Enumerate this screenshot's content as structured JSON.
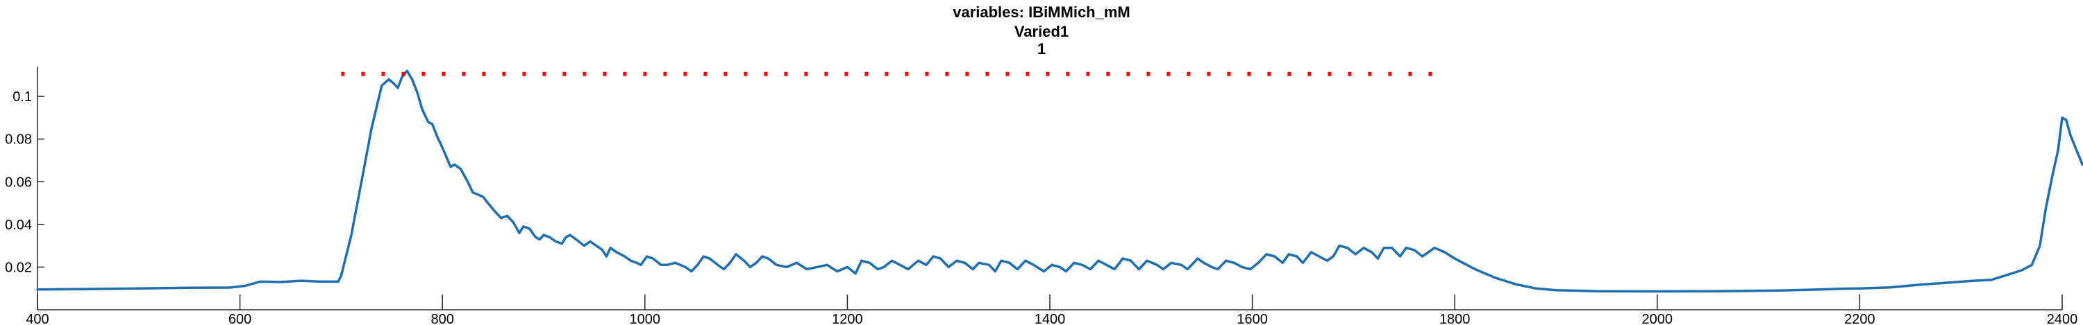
{
  "chart_data": {
    "type": "line",
    "title": "variables: IBiMMich_mM",
    "subtitle_lines": [
      "Varied1",
      "1"
    ],
    "xlabel": "",
    "ylabel": "",
    "xlim": [
      400,
      2400
    ],
    "ylim": [
      0,
      0.114
    ],
    "x_ticks": [
      400,
      600,
      800,
      1000,
      1200,
      1400,
      1600,
      1800,
      2000,
      2200,
      2400
    ],
    "x_tick_labels": [
      "400",
      "600",
      "800",
      "1000",
      "1200",
      "1400",
      "1600",
      "1800",
      "2000",
      "2200",
      "2400"
    ],
    "y_ticks": [
      0.02,
      0.04,
      0.06,
      0.08,
      0.1
    ],
    "y_tick_labels": [
      "0.02",
      "0.04",
      "0.06",
      "0.08",
      "0.1"
    ],
    "grid": false,
    "legend": "none",
    "series": [
      {
        "color": "#1f6fb0",
        "style": "solid",
        "points": [
          [
            400,
            0.0095
          ],
          [
            450,
            0.0097
          ],
          [
            500,
            0.01
          ],
          [
            550,
            0.0103
          ],
          [
            590,
            0.0104
          ],
          [
            605,
            0.0112
          ],
          [
            620,
            0.0132
          ],
          [
            640,
            0.013
          ],
          [
            660,
            0.0136
          ],
          [
            680,
            0.0132
          ],
          [
            697,
            0.0132
          ],
          [
            700,
            0.016
          ],
          [
            710,
            0.035
          ],
          [
            720,
            0.06
          ],
          [
            730,
            0.085
          ],
          [
            740,
            0.105
          ],
          [
            747,
            0.108
          ],
          [
            752,
            0.106
          ],
          [
            756,
            0.104
          ],
          [
            760,
            0.109
          ],
          [
            765,
            0.112
          ],
          [
            770,
            0.108
          ],
          [
            775,
            0.102
          ],
          [
            780,
            0.094
          ],
          [
            786,
            0.088
          ],
          [
            790,
            0.087
          ],
          [
            795,
            0.081
          ],
          [
            800,
            0.076
          ],
          [
            808,
            0.067
          ],
          [
            812,
            0.068
          ],
          [
            818,
            0.066
          ],
          [
            825,
            0.06
          ],
          [
            830,
            0.055
          ],
          [
            835,
            0.054
          ],
          [
            840,
            0.053
          ],
          [
            845,
            0.05
          ],
          [
            852,
            0.046
          ],
          [
            858,
            0.043
          ],
          [
            864,
            0.044
          ],
          [
            870,
            0.041
          ],
          [
            876,
            0.036
          ],
          [
            880,
            0.039
          ],
          [
            886,
            0.038
          ],
          [
            892,
            0.034
          ],
          [
            896,
            0.033
          ],
          [
            900,
            0.035
          ],
          [
            906,
            0.034
          ],
          [
            912,
            0.032
          ],
          [
            918,
            0.031
          ],
          [
            922,
            0.034
          ],
          [
            926,
            0.035
          ],
          [
            932,
            0.033
          ],
          [
            940,
            0.03
          ],
          [
            946,
            0.032
          ],
          [
            952,
            0.03
          ],
          [
            958,
            0.028
          ],
          [
            962,
            0.025
          ],
          [
            966,
            0.029
          ],
          [
            972,
            0.027
          ],
          [
            980,
            0.025
          ],
          [
            986,
            0.023
          ],
          [
            992,
            0.022
          ],
          [
            996,
            0.021
          ],
          [
            1002,
            0.025
          ],
          [
            1008,
            0.024
          ],
          [
            1016,
            0.021
          ],
          [
            1022,
            0.021
          ],
          [
            1030,
            0.022
          ],
          [
            1040,
            0.02
          ],
          [
            1046,
            0.018
          ],
          [
            1052,
            0.021
          ],
          [
            1058,
            0.025
          ],
          [
            1064,
            0.024
          ],
          [
            1072,
            0.021
          ],
          [
            1078,
            0.019
          ],
          [
            1084,
            0.022
          ],
          [
            1090,
            0.026
          ],
          [
            1098,
            0.023
          ],
          [
            1104,
            0.02
          ],
          [
            1110,
            0.022
          ],
          [
            1116,
            0.025
          ],
          [
            1122,
            0.024
          ],
          [
            1130,
            0.021
          ],
          [
            1140,
            0.02
          ],
          [
            1150,
            0.022
          ],
          [
            1160,
            0.019
          ],
          [
            1170,
            0.02
          ],
          [
            1180,
            0.021
          ],
          [
            1190,
            0.018
          ],
          [
            1200,
            0.02
          ],
          [
            1208,
            0.017
          ],
          [
            1214,
            0.023
          ],
          [
            1222,
            0.022
          ],
          [
            1230,
            0.019
          ],
          [
            1236,
            0.02
          ],
          [
            1244,
            0.023
          ],
          [
            1252,
            0.021
          ],
          [
            1260,
            0.019
          ],
          [
            1270,
            0.023
          ],
          [
            1278,
            0.021
          ],
          [
            1285,
            0.025
          ],
          [
            1292,
            0.024
          ],
          [
            1300,
            0.02
          ],
          [
            1308,
            0.023
          ],
          [
            1316,
            0.022
          ],
          [
            1324,
            0.019
          ],
          [
            1330,
            0.022
          ],
          [
            1340,
            0.021
          ],
          [
            1346,
            0.018
          ],
          [
            1352,
            0.023
          ],
          [
            1360,
            0.022
          ],
          [
            1368,
            0.019
          ],
          [
            1376,
            0.023
          ],
          [
            1384,
            0.021
          ],
          [
            1394,
            0.018
          ],
          [
            1402,
            0.021
          ],
          [
            1410,
            0.02
          ],
          [
            1416,
            0.018
          ],
          [
            1424,
            0.022
          ],
          [
            1432,
            0.021
          ],
          [
            1440,
            0.019
          ],
          [
            1448,
            0.023
          ],
          [
            1456,
            0.021
          ],
          [
            1464,
            0.019
          ],
          [
            1472,
            0.024
          ],
          [
            1480,
            0.023
          ],
          [
            1488,
            0.019
          ],
          [
            1496,
            0.023
          ],
          [
            1506,
            0.021
          ],
          [
            1512,
            0.019
          ],
          [
            1520,
            0.022
          ],
          [
            1530,
            0.021
          ],
          [
            1536,
            0.019
          ],
          [
            1546,
            0.024
          ],
          [
            1552,
            0.022
          ],
          [
            1560,
            0.02
          ],
          [
            1566,
            0.019
          ],
          [
            1574,
            0.023
          ],
          [
            1582,
            0.022
          ],
          [
            1590,
            0.02
          ],
          [
            1598,
            0.019
          ],
          [
            1606,
            0.022
          ],
          [
            1614,
            0.026
          ],
          [
            1622,
            0.025
          ],
          [
            1630,
            0.022
          ],
          [
            1636,
            0.026
          ],
          [
            1644,
            0.025
          ],
          [
            1650,
            0.022
          ],
          [
            1658,
            0.027
          ],
          [
            1666,
            0.025
          ],
          [
            1674,
            0.023
          ],
          [
            1680,
            0.025
          ],
          [
            1686,
            0.03
          ],
          [
            1694,
            0.029
          ],
          [
            1702,
            0.026
          ],
          [
            1710,
            0.029
          ],
          [
            1718,
            0.027
          ],
          [
            1724,
            0.024
          ],
          [
            1730,
            0.029
          ],
          [
            1738,
            0.029
          ],
          [
            1746,
            0.025
          ],
          [
            1752,
            0.029
          ],
          [
            1760,
            0.028
          ],
          [
            1768,
            0.025
          ],
          [
            1774,
            0.027
          ],
          [
            1780,
            0.029
          ],
          [
            1790,
            0.027
          ],
          [
            1800,
            0.024
          ],
          [
            1820,
            0.019
          ],
          [
            1840,
            0.015
          ],
          [
            1860,
            0.012
          ],
          [
            1880,
            0.01
          ],
          [
            1900,
            0.0092
          ],
          [
            1940,
            0.0087
          ],
          [
            2000,
            0.0086
          ],
          [
            2060,
            0.0087
          ],
          [
            2120,
            0.009
          ],
          [
            2160,
            0.0095
          ],
          [
            2180,
            0.0098
          ],
          [
            2200,
            0.01
          ],
          [
            2230,
            0.0105
          ],
          [
            2260,
            0.0118
          ],
          [
            2290,
            0.0128
          ],
          [
            2310,
            0.0135
          ],
          [
            2330,
            0.014
          ],
          [
            2340,
            0.0155
          ],
          [
            2350,
            0.017
          ],
          [
            2360,
            0.0185
          ],
          [
            2370,
            0.021
          ],
          [
            2378,
            0.03
          ],
          [
            2384,
            0.048
          ],
          [
            2390,
            0.062
          ],
          [
            2396,
            0.075
          ],
          [
            2400,
            0.09
          ],
          [
            2404,
            0.089
          ],
          [
            2408,
            0.082
          ],
          [
            2414,
            0.075
          ],
          [
            2420,
            0.068
          ]
        ]
      },
      {
        "color": "#ff0000",
        "style": "dotted",
        "points": [
          [
            700,
            0.1105
          ],
          [
            1780,
            0.1105
          ]
        ]
      }
    ]
  }
}
